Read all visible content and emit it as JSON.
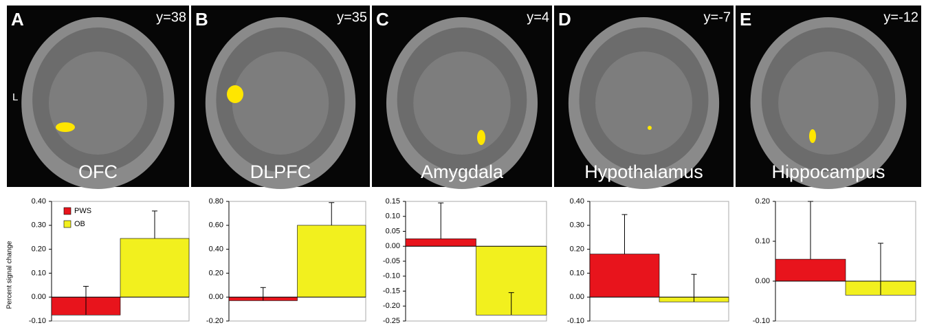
{
  "orientation_label": "L",
  "chart_data": [
    {
      "type": "bar",
      "panel": "A",
      "slice": "y=38",
      "title": "OFC",
      "ylabel": "Percent signal change",
      "legend": true,
      "ylim": [
        -0.1,
        0.4
      ],
      "yticks": [
        {
          "value": -0.1,
          "label": "-0.10"
        },
        {
          "value": 0,
          "label": "0.00"
        },
        {
          "value": 0.1,
          "label": "0.10"
        },
        {
          "value": 0.2,
          "label": "0.20"
        },
        {
          "value": 0.3,
          "label": "0.30"
        },
        {
          "value": 0.4,
          "label": "0.40"
        }
      ],
      "series": [
        {
          "name": "PWS",
          "color": "#e8141c",
          "values": [
            -0.075
          ],
          "errors": [
            0.12
          ]
        },
        {
          "name": "OB",
          "color": "#f2f01e",
          "values": [
            0.245
          ],
          "errors": [
            0.115
          ]
        }
      ]
    },
    {
      "type": "bar",
      "panel": "B",
      "slice": "y=35",
      "title": "DLPFC",
      "ylim": [
        -0.2,
        0.8
      ],
      "yticks": [
        {
          "value": -0.2,
          "label": "-0.20"
        },
        {
          "value": 0,
          "label": "0.00"
        },
        {
          "value": 0.2,
          "label": "0.20"
        },
        {
          "value": 0.4,
          "label": "0.40"
        },
        {
          "value": 0.6,
          "label": "0.60"
        },
        {
          "value": 0.8,
          "label": "0.80"
        }
      ],
      "series": [
        {
          "color": "#e8141c",
          "values": [
            -0.03
          ],
          "errors": [
            0.11
          ]
        },
        {
          "color": "#f2f01e",
          "values": [
            0.6
          ],
          "errors": [
            0.19
          ]
        }
      ]
    },
    {
      "type": "bar",
      "panel": "C",
      "slice": "y=4",
      "title": "Amygdala",
      "ylim": [
        -0.25,
        0.15
      ],
      "yticks": [
        {
          "value": -0.25,
          "label": "-0.25"
        },
        {
          "value": -0.2,
          "label": "-0.20"
        },
        {
          "value": -0.15,
          "label": "-0.15"
        },
        {
          "value": -0.1,
          "label": "-0.10"
        },
        {
          "value": -0.05,
          "label": "-0.05"
        },
        {
          "value": 0,
          "label": "0.00"
        },
        {
          "value": 0.05,
          "label": "0.05"
        },
        {
          "value": 0.1,
          "label": "0.10"
        },
        {
          "value": 0.15,
          "label": "0.15"
        }
      ],
      "series": [
        {
          "color": "#e8141c",
          "values": [
            0.025
          ],
          "errors": [
            0.12
          ]
        },
        {
          "color": "#f2f01e",
          "values": [
            -0.23
          ],
          "errors": [
            0.075
          ]
        }
      ]
    },
    {
      "type": "bar",
      "panel": "D",
      "slice": "y=-7",
      "title": "Hypothalamus",
      "ylim": [
        -0.1,
        0.4
      ],
      "yticks": [
        {
          "value": -0.1,
          "label": "-0.10"
        },
        {
          "value": 0,
          "label": "0.00"
        },
        {
          "value": 0.1,
          "label": "0.10"
        },
        {
          "value": 0.2,
          "label": "0.20"
        },
        {
          "value": 0.3,
          "label": "0.30"
        },
        {
          "value": 0.4,
          "label": "0.40"
        }
      ],
      "series": [
        {
          "color": "#e8141c",
          "values": [
            0.18
          ],
          "errors": [
            0.165
          ]
        },
        {
          "color": "#f2f01e",
          "values": [
            -0.02
          ],
          "errors": [
            0.115
          ]
        }
      ]
    },
    {
      "type": "bar",
      "panel": "E",
      "slice": "y=-12",
      "title": "Hippocampus",
      "ylim": [
        -0.1,
        0.2
      ],
      "yticks": [
        {
          "value": -0.1,
          "label": "-0.10"
        },
        {
          "value": 0,
          "label": "0.00"
        },
        {
          "value": 0.1,
          "label": "0.10"
        },
        {
          "value": 0.2,
          "label": "0.20"
        }
      ],
      "series": [
        {
          "color": "#e8141c",
          "values": [
            0.055
          ],
          "errors": [
            0.145
          ]
        },
        {
          "color": "#f2f01e",
          "values": [
            -0.035
          ],
          "errors": [
            0.13
          ]
        }
      ]
    }
  ]
}
